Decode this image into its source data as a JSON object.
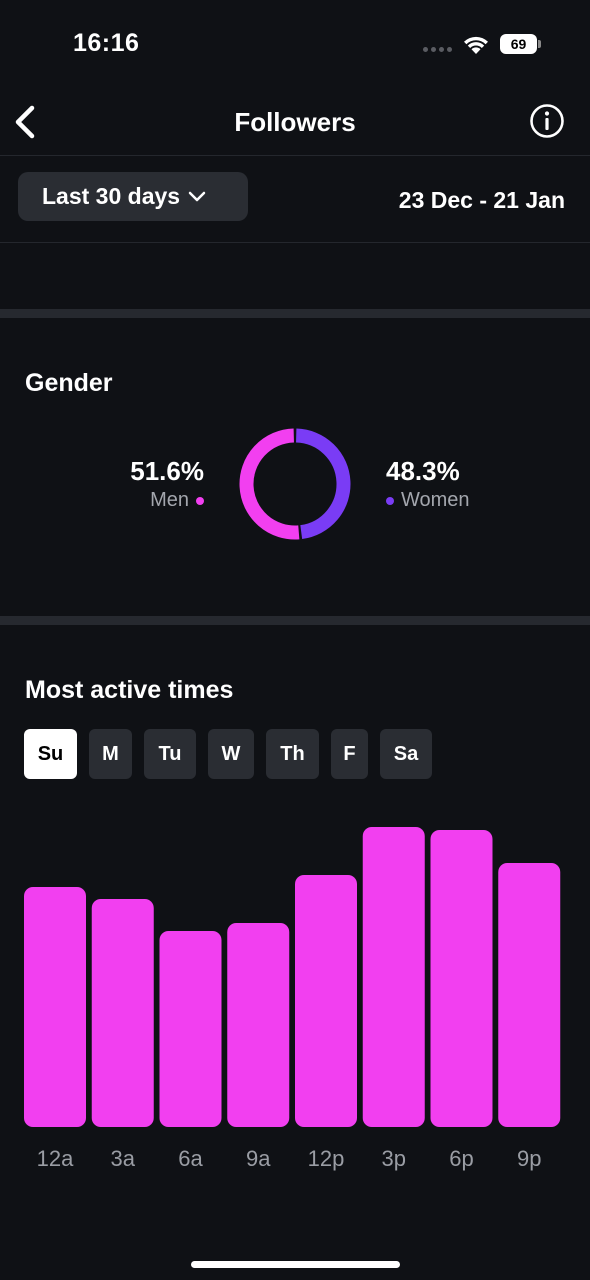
{
  "status_bar": {
    "time": "16:16",
    "battery": "69"
  },
  "header": {
    "title": "Followers",
    "back_icon": "chevron-left-icon",
    "info_icon": "info-circle-icon"
  },
  "filter": {
    "range_label": "Last 30 days",
    "date_range": "23 Dec - 21 Jan"
  },
  "gender": {
    "title": "Gender",
    "men": {
      "percent": "51.6%",
      "label": "Men",
      "value": 51.6,
      "color": "#f23ff0"
    },
    "women": {
      "percent": "48.3%",
      "label": "Women",
      "value": 48.3,
      "color": "#7a3cf5"
    }
  },
  "active_times": {
    "title": "Most active times",
    "days": [
      {
        "label": "Su",
        "active": true
      },
      {
        "label": "M",
        "active": false
      },
      {
        "label": "Tu",
        "active": false
      },
      {
        "label": "W",
        "active": false
      },
      {
        "label": "Th",
        "active": false
      },
      {
        "label": "F",
        "active": false
      },
      {
        "label": "Sa",
        "active": false
      }
    ]
  },
  "chart_data": {
    "type": "bar",
    "categories": [
      "12a",
      "3a",
      "6a",
      "9a",
      "12p",
      "3p",
      "6p",
      "9p"
    ],
    "values": [
      240,
      228,
      196,
      204,
      252,
      300,
      297,
      264
    ],
    "ylim": [
      0,
      300
    ],
    "bar_color": "#f23ff0",
    "grid": false,
    "legend": "none"
  }
}
